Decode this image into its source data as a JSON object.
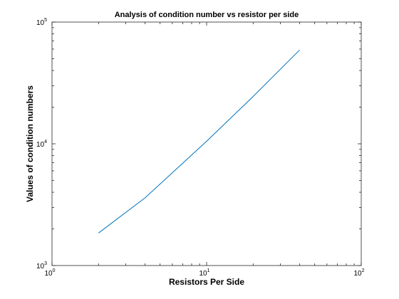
{
  "chart_data": {
    "type": "line",
    "title": "Analysis of condition number vs resistor per side",
    "xlabel": "Resistors Per Side",
    "ylabel": "Values of condition numbers",
    "xscale": "log",
    "yscale": "log",
    "xlim": [
      1,
      100
    ],
    "ylim": [
      1000,
      100000
    ],
    "x_ticks": [
      {
        "value": 1,
        "base": "10",
        "exp": "0"
      },
      {
        "value": 10,
        "base": "10",
        "exp": "1"
      },
      {
        "value": 100,
        "base": "10",
        "exp": "2"
      }
    ],
    "y_ticks": [
      {
        "value": 1000,
        "base": "10",
        "exp": "3"
      },
      {
        "value": 10000,
        "base": "10",
        "exp": "4"
      },
      {
        "value": 100000,
        "base": "10",
        "exp": "5"
      }
    ],
    "grid": false,
    "series": [
      {
        "color": "#0072bd",
        "x": [
          2,
          4,
          10,
          20,
          40
        ],
        "y": [
          1850,
          3600,
          10500,
          24500,
          59000
        ]
      }
    ]
  }
}
